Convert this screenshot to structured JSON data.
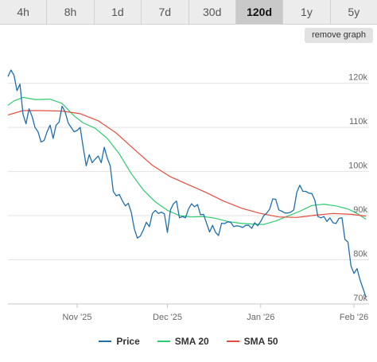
{
  "tabs": [
    {
      "label": "4h",
      "active": false
    },
    {
      "label": "8h",
      "active": false
    },
    {
      "label": "1d",
      "active": false
    },
    {
      "label": "7d",
      "active": false
    },
    {
      "label": "30d",
      "active": false
    },
    {
      "label": "120d",
      "active": true
    },
    {
      "label": "1y",
      "active": false
    },
    {
      "label": "5y",
      "active": false
    }
  ],
  "remove_graph_label": "remove graph",
  "chart_data": {
    "type": "line",
    "title": "",
    "xlabel": "",
    "ylabel": "",
    "ylim": [
      70000,
      127500
    ],
    "yticks": [
      {
        "value": 70000,
        "label": "70k"
      },
      {
        "value": 80000,
        "label": "80k"
      },
      {
        "value": 90000,
        "label": "90k"
      },
      {
        "value": 100000,
        "label": "100k"
      },
      {
        "value": 110000,
        "label": "110k"
      },
      {
        "value": 120000,
        "label": "120k"
      }
    ],
    "xrange": [
      "2025-10-09",
      "2026-02-06"
    ],
    "xticks": [
      {
        "date": "2025-11-01",
        "label": "Nov '25"
      },
      {
        "date": "2025-12-01",
        "label": "Dec '25"
      },
      {
        "date": "2026-01-01",
        "label": "Jan '26"
      },
      {
        "date": "2026-02-01",
        "label": "Feb '26"
      }
    ],
    "grid": true,
    "legend_position": "bottom",
    "series": [
      {
        "name": "Price",
        "color": "#1f6fad",
        "points": [
          [
            "2025-10-09",
            121500
          ],
          [
            "2025-10-10",
            123000
          ],
          [
            "2025-10-11",
            121800
          ],
          [
            "2025-10-12",
            118300
          ],
          [
            "2025-10-13",
            119800
          ],
          [
            "2025-10-14",
            113000
          ],
          [
            "2025-10-15",
            110800
          ],
          [
            "2025-10-16",
            114200
          ],
          [
            "2025-10-17",
            112500
          ],
          [
            "2025-10-18",
            110000
          ],
          [
            "2025-10-19",
            109000
          ],
          [
            "2025-10-20",
            106700
          ],
          [
            "2025-10-21",
            107000
          ],
          [
            "2025-10-22",
            109000
          ],
          [
            "2025-10-23",
            110500
          ],
          [
            "2025-10-24",
            107500
          ],
          [
            "2025-10-25",
            110500
          ],
          [
            "2025-10-26",
            111200
          ],
          [
            "2025-10-27",
            114800
          ],
          [
            "2025-10-28",
            113500
          ],
          [
            "2025-10-29",
            111000
          ],
          [
            "2025-10-30",
            110000
          ],
          [
            "2025-10-31",
            109000
          ],
          [
            "2025-11-01",
            109300
          ],
          [
            "2025-11-02",
            110000
          ],
          [
            "2025-11-03",
            105500
          ],
          [
            "2025-11-04",
            101300
          ],
          [
            "2025-11-05",
            103800
          ],
          [
            "2025-11-06",
            102000
          ],
          [
            "2025-11-07",
            102800
          ],
          [
            "2025-11-08",
            103500
          ],
          [
            "2025-11-09",
            102000
          ],
          [
            "2025-11-10",
            105500
          ],
          [
            "2025-11-11",
            103000
          ],
          [
            "2025-11-12",
            101300
          ],
          [
            "2025-11-13",
            95500
          ],
          [
            "2025-11-14",
            94500
          ],
          [
            "2025-11-15",
            94800
          ],
          [
            "2025-11-16",
            93400
          ],
          [
            "2025-11-17",
            92200
          ],
          [
            "2025-11-18",
            92800
          ],
          [
            "2025-11-19",
            90700
          ],
          [
            "2025-11-20",
            87000
          ],
          [
            "2025-11-21",
            84900
          ],
          [
            "2025-11-22",
            85400
          ],
          [
            "2025-11-23",
            86800
          ],
          [
            "2025-11-24",
            88500
          ],
          [
            "2025-11-25",
            87500
          ],
          [
            "2025-11-26",
            90500
          ],
          [
            "2025-11-27",
            91200
          ],
          [
            "2025-11-28",
            90500
          ],
          [
            "2025-11-29",
            90800
          ],
          [
            "2025-11-30",
            90400
          ],
          [
            "2025-12-01",
            86200
          ],
          [
            "2025-12-02",
            91300
          ],
          [
            "2025-12-03",
            92700
          ],
          [
            "2025-12-04",
            93300
          ],
          [
            "2025-12-05",
            89500
          ],
          [
            "2025-12-06",
            89800
          ],
          [
            "2025-12-07",
            89500
          ],
          [
            "2025-12-08",
            91500
          ],
          [
            "2025-12-09",
            92700
          ],
          [
            "2025-12-10",
            92000
          ],
          [
            "2025-12-11",
            92500
          ],
          [
            "2025-12-12",
            90200
          ],
          [
            "2025-12-13",
            90300
          ],
          [
            "2025-12-14",
            88300
          ],
          [
            "2025-12-15",
            86300
          ],
          [
            "2025-12-16",
            87800
          ],
          [
            "2025-12-17",
            86200
          ],
          [
            "2025-12-18",
            85500
          ],
          [
            "2025-12-19",
            88300
          ],
          [
            "2025-12-20",
            88200
          ],
          [
            "2025-12-21",
            88600
          ],
          [
            "2025-12-22",
            88500
          ],
          [
            "2025-12-23",
            87500
          ],
          [
            "2025-12-24",
            87700
          ],
          [
            "2025-12-25",
            87600
          ],
          [
            "2025-12-26",
            87300
          ],
          [
            "2025-12-27",
            87800
          ],
          [
            "2025-12-28",
            87800
          ],
          [
            "2025-12-29",
            87100
          ],
          [
            "2025-12-30",
            88400
          ],
          [
            "2025-12-31",
            87700
          ],
          [
            "2026-01-01",
            88700
          ],
          [
            "2026-01-02",
            90000
          ],
          [
            "2026-01-03",
            90600
          ],
          [
            "2026-01-04",
            91500
          ],
          [
            "2026-01-05",
            93800
          ],
          [
            "2026-01-06",
            93700
          ],
          [
            "2026-01-07",
            91300
          ],
          [
            "2026-01-08",
            91000
          ],
          [
            "2026-01-09",
            90600
          ],
          [
            "2026-01-10",
            90600
          ],
          [
            "2026-01-11",
            90800
          ],
          [
            "2026-01-12",
            91300
          ],
          [
            "2026-01-13",
            95300
          ],
          [
            "2026-01-14",
            96900
          ],
          [
            "2026-01-15",
            95500
          ],
          [
            "2026-01-16",
            95500
          ],
          [
            "2026-01-17",
            95100
          ],
          [
            "2026-01-18",
            95000
          ],
          [
            "2026-01-19",
            93500
          ],
          [
            "2026-01-20",
            89800
          ],
          [
            "2026-01-21",
            89500
          ],
          [
            "2026-01-22",
            89800
          ],
          [
            "2026-01-23",
            88700
          ],
          [
            "2026-01-24",
            89500
          ],
          [
            "2026-01-25",
            88400
          ],
          [
            "2026-01-26",
            88200
          ],
          [
            "2026-01-27",
            89400
          ],
          [
            "2026-01-28",
            89500
          ],
          [
            "2026-01-29",
            84600
          ],
          [
            "2026-01-30",
            84000
          ],
          [
            "2026-01-31",
            78600
          ],
          [
            "2026-02-01",
            76900
          ],
          [
            "2026-02-02",
            78000
          ],
          [
            "2026-02-03",
            75500
          ],
          [
            "2026-02-04",
            73500
          ],
          [
            "2026-02-05",
            71500
          ]
        ]
      },
      {
        "name": "SMA 20",
        "color": "#2ecc71",
        "points": [
          [
            "2025-10-09",
            115000
          ],
          [
            "2025-10-11",
            116000
          ],
          [
            "2025-10-14",
            116800
          ],
          [
            "2025-10-18",
            116300
          ],
          [
            "2025-10-23",
            116400
          ],
          [
            "2025-10-27",
            115400
          ],
          [
            "2025-10-31",
            112600
          ],
          [
            "2025-11-03",
            111000
          ],
          [
            "2025-11-07",
            109800
          ],
          [
            "2025-11-11",
            107500
          ],
          [
            "2025-11-15",
            104000
          ],
          [
            "2025-11-19",
            99500
          ],
          [
            "2025-11-23",
            95800
          ],
          [
            "2025-11-27",
            93100
          ],
          [
            "2025-12-01",
            91200
          ],
          [
            "2025-12-05",
            90000
          ],
          [
            "2025-12-09",
            89700
          ],
          [
            "2025-12-13",
            89800
          ],
          [
            "2025-12-17",
            89400
          ],
          [
            "2025-12-21",
            88700
          ],
          [
            "2025-12-25",
            88300
          ],
          [
            "2025-12-29",
            88100
          ],
          [
            "2026-01-02",
            88000
          ],
          [
            "2026-01-06",
            88800
          ],
          [
            "2026-01-10",
            89900
          ],
          [
            "2026-01-14",
            91000
          ],
          [
            "2026-01-18",
            92300
          ],
          [
            "2026-01-22",
            92600
          ],
          [
            "2026-01-26",
            92200
          ],
          [
            "2026-01-30",
            91500
          ],
          [
            "2026-02-02",
            90500
          ],
          [
            "2026-02-05",
            89200
          ]
        ]
      },
      {
        "name": "SMA 50",
        "color": "#e74c3c",
        "points": [
          [
            "2025-10-09",
            112800
          ],
          [
            "2025-10-14",
            113800
          ],
          [
            "2025-10-20",
            113800
          ],
          [
            "2025-10-27",
            113700
          ],
          [
            "2025-11-02",
            113100
          ],
          [
            "2025-11-08",
            111500
          ],
          [
            "2025-11-14",
            108700
          ],
          [
            "2025-11-20",
            105000
          ],
          [
            "2025-11-26",
            101400
          ],
          [
            "2025-12-02",
            98800
          ],
          [
            "2025-12-08",
            97000
          ],
          [
            "2025-12-14",
            95200
          ],
          [
            "2025-12-20",
            93200
          ],
          [
            "2025-12-26",
            91600
          ],
          [
            "2026-01-01",
            90500
          ],
          [
            "2026-01-07",
            89700
          ],
          [
            "2026-01-13",
            89600
          ],
          [
            "2026-01-19",
            90100
          ],
          [
            "2026-01-25",
            90500
          ],
          [
            "2026-01-31",
            90300
          ],
          [
            "2026-02-05",
            89900
          ]
        ]
      }
    ]
  }
}
